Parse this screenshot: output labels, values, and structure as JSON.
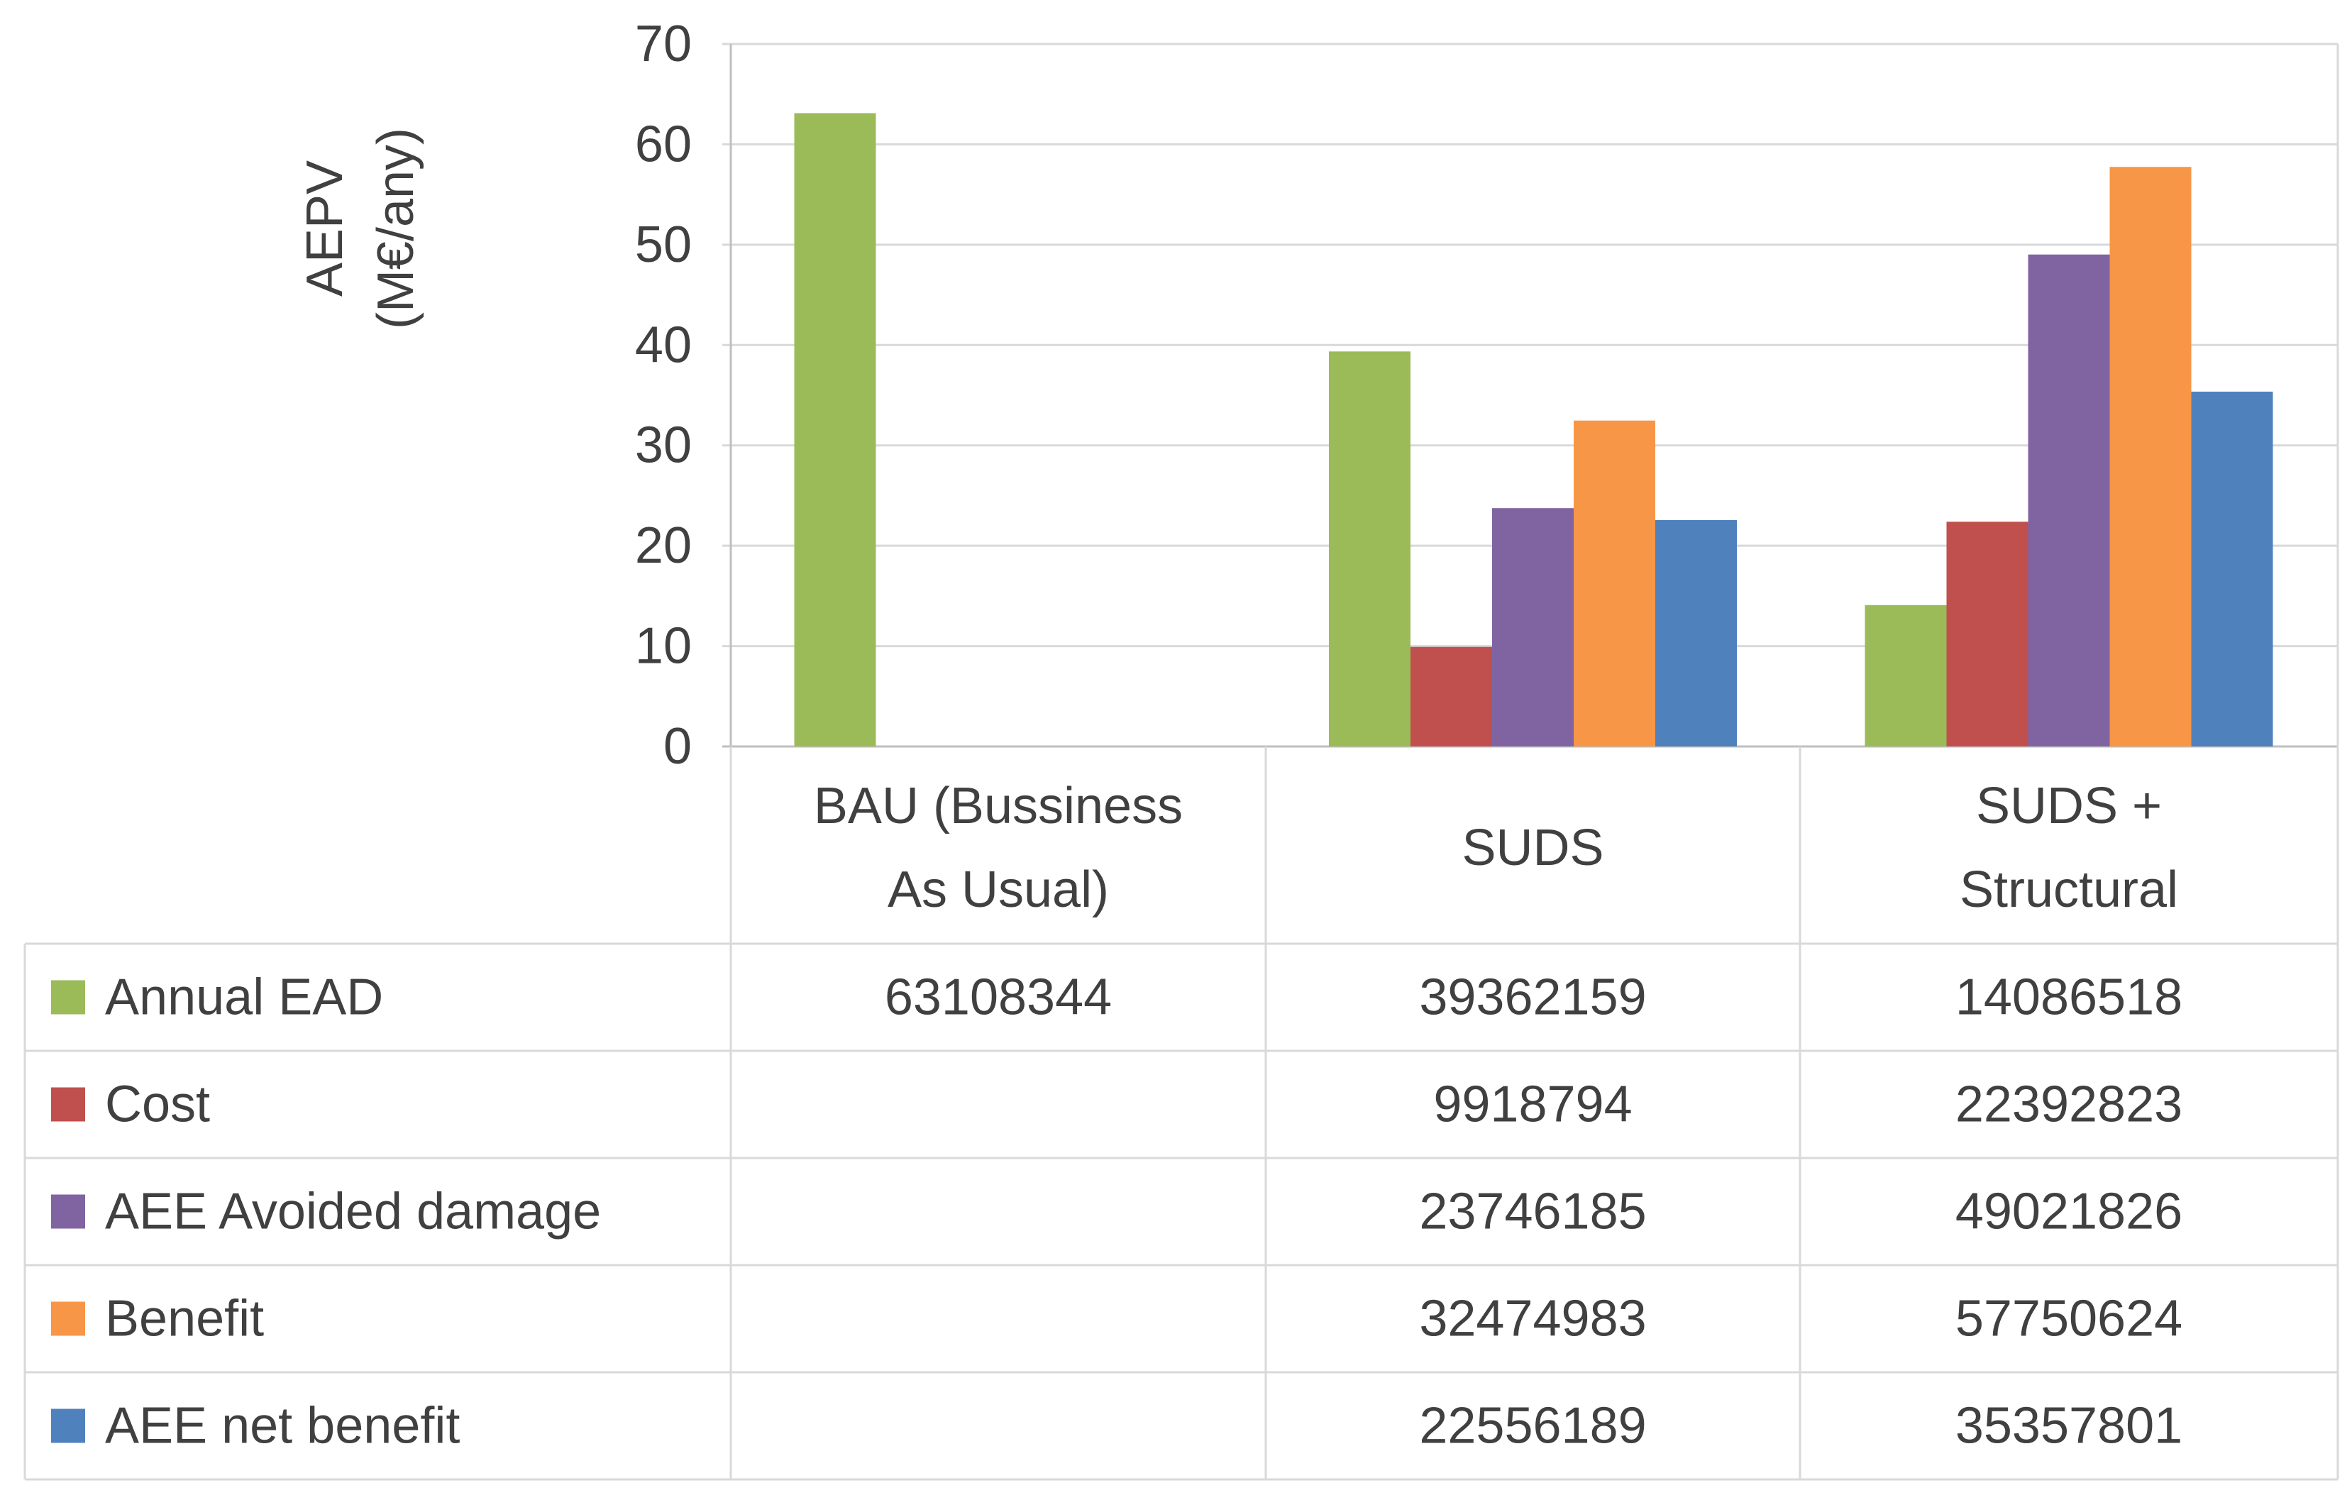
{
  "chart_data": {
    "type": "bar",
    "title": "",
    "ylabel_lines": [
      "AEPV",
      "(M€/any)"
    ],
    "ylim": [
      0,
      70
    ],
    "yticks": [
      0,
      10,
      20,
      30,
      40,
      50,
      60,
      70
    ],
    "grid": true,
    "categories": [
      [
        "BAU (Bussiness",
        "As Usual)"
      ],
      [
        "SUDS"
      ],
      [
        "SUDS +",
        "Structural"
      ]
    ],
    "series": [
      {
        "name": "Annual EAD",
        "color": "#9BBB59",
        "values": [
          63.108344,
          39.362159,
          14.086518
        ],
        "table": [
          "63108344",
          "39362159",
          "14086518"
        ]
      },
      {
        "name": "Cost",
        "color": "#C0504D",
        "values": [
          null,
          9.918794,
          22.392823
        ],
        "table": [
          "",
          "9918794",
          "22392823"
        ]
      },
      {
        "name": "AEE Avoided damage",
        "color": "#8064A2",
        "values": [
          null,
          23.746185,
          49.021826
        ],
        "table": [
          "",
          "23746185",
          "49021826"
        ]
      },
      {
        "name": "Benefit",
        "color": "#F79646",
        "values": [
          null,
          32.474983,
          57.750624
        ],
        "table": [
          "",
          "32474983",
          "57750624"
        ]
      },
      {
        "name": "AEE net benefit",
        "color": "#4F81BD",
        "values": [
          null,
          22.556189,
          35.357801
        ],
        "table": [
          "",
          "22556189",
          "35357801"
        ]
      }
    ]
  }
}
